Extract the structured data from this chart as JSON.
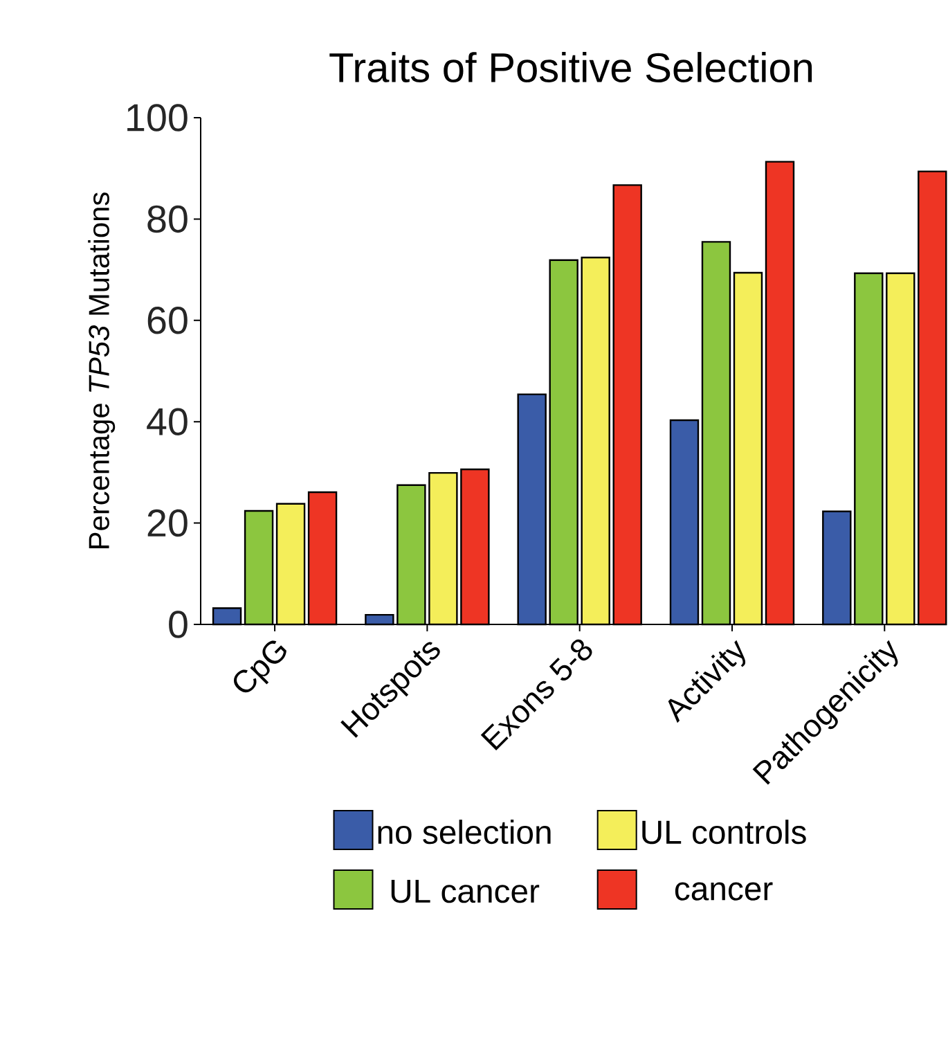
{
  "chart_data": {
    "type": "bar",
    "title": "Traits of Positive Selection",
    "ylabel": "Percentage *TP53* Mutations",
    "categories": [
      "CpG",
      "Hotspots",
      "Exons 5-8",
      "Activity",
      "Pathogenicity"
    ],
    "series": [
      {
        "name": "no selection",
        "color": "#3a5ca8",
        "values": [
          3.2,
          1.9,
          45.4,
          40.3,
          22.3
        ]
      },
      {
        "name": "UL cancer",
        "color": "#8cc63f",
        "values": [
          22.4,
          27.5,
          71.9,
          75.5,
          69.3
        ]
      },
      {
        "name": "UL controls",
        "color": "#f4ee5a",
        "values": [
          23.8,
          29.9,
          72.4,
          69.4,
          69.3
        ]
      },
      {
        "name": "cancer",
        "color": "#ee3524",
        "values": [
          26.1,
          30.6,
          86.7,
          91.3,
          89.4
        ]
      }
    ],
    "ylim": [
      0,
      100
    ],
    "yticks": [
      0,
      20,
      40,
      60,
      80,
      100
    ],
    "legend": "bottom"
  }
}
